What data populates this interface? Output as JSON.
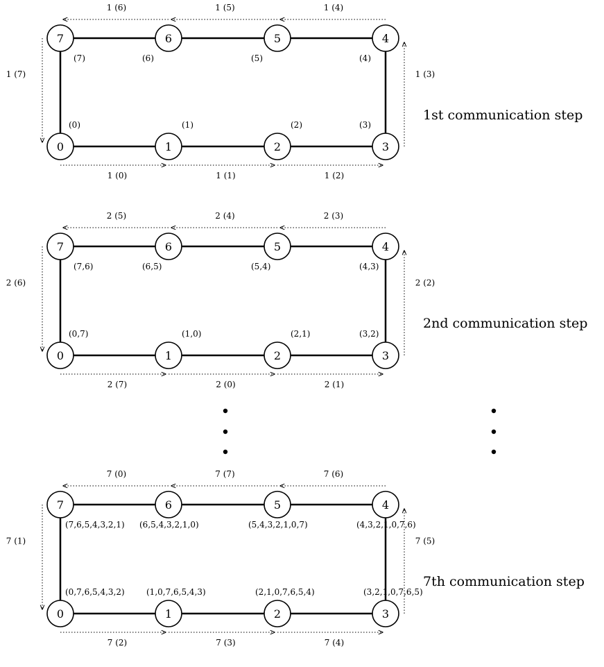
{
  "diagram": {
    "ring_nodes": {
      "top": [
        "7",
        "6",
        "5",
        "4"
      ],
      "bottom": [
        "0",
        "1",
        "2",
        "3"
      ]
    },
    "steps": [
      {
        "title": "1st communication step",
        "top_msgs": [
          "1  (6)",
          "1  (5)",
          "1  (4)"
        ],
        "bottom_msgs": [
          "1  (0)",
          "1  (1)",
          "1  (2)"
        ],
        "left_msg": "1  (7)",
        "right_msg": "1  (3)",
        "top_holds": [
          "(7)",
          "(6)",
          "(5)",
          "(4)"
        ],
        "bottom_holds": [
          "(0)",
          "(1)",
          "(2)",
          "(3)"
        ]
      },
      {
        "title": "2nd communication step",
        "top_msgs": [
          "2  (5)",
          "2  (4)",
          "2  (3)"
        ],
        "bottom_msgs": [
          "2  (7)",
          "2  (0)",
          "2  (1)"
        ],
        "left_msg": "2  (6)",
        "right_msg": "2  (2)",
        "top_holds": [
          "(7,6)",
          "(6,5)",
          "(5,4)",
          "(4,3)"
        ],
        "bottom_holds": [
          "(0,7)",
          "(1,0)",
          "(2,1)",
          "(3,2)"
        ]
      },
      {
        "title": "7th communication step",
        "top_msgs": [
          "7  (0)",
          "7  (7)",
          "7  (6)"
        ],
        "bottom_msgs": [
          "7  (2)",
          "7  (3)",
          "7  (4)"
        ],
        "left_msg": "7  (1)",
        "right_msg": "7  (5)",
        "top_holds": [
          "(7,6,5,4,3,2,1)",
          "(6,5,4,3,2,1,0)",
          "(5,4,3,2,1,0,7)",
          "(4,3,2,1,0,7,6)"
        ],
        "bottom_holds": [
          "(0,7,6,5,4,3,2)",
          "(1,0,7,6,5,4,3)",
          "(2,1,0,7,6,5,4)",
          "(3,2,1,0,7,6,5)"
        ]
      }
    ]
  }
}
